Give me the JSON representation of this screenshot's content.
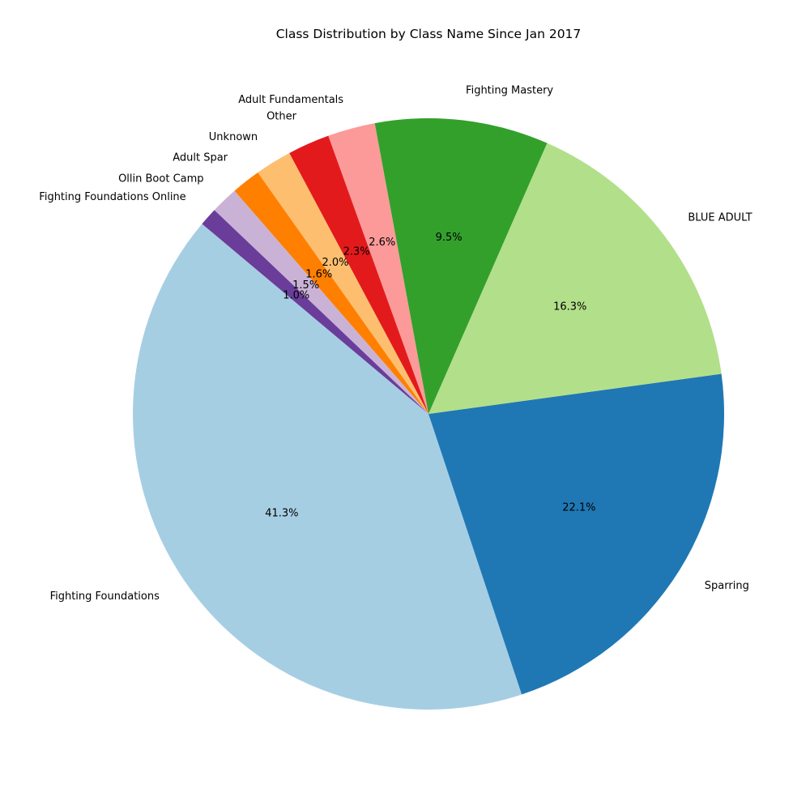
{
  "chart_data": {
    "type": "pie",
    "title": "Class Distribution by Class Name Since Jan 2017",
    "start_angle_deg": 140,
    "direction": "counterclockwise",
    "slices": [
      {
        "label": "Fighting Foundations",
        "value": 41.3,
        "pct_label": "41.3%",
        "color": "#a6cee3"
      },
      {
        "label": "Sparring",
        "value": 22.1,
        "pct_label": "22.1%",
        "color": "#1f78b4"
      },
      {
        "label": "BLUE ADULT",
        "value": 16.3,
        "pct_label": "16.3%",
        "color": "#b2df8a"
      },
      {
        "label": "Fighting Mastery",
        "value": 9.5,
        "pct_label": "9.5%",
        "color": "#33a02c"
      },
      {
        "label": "Adult Fundamentals",
        "value": 2.6,
        "pct_label": "2.6%",
        "color": "#fb9a99"
      },
      {
        "label": "Other",
        "value": 2.3,
        "pct_label": "2.3%",
        "color": "#e31a1c"
      },
      {
        "label": "Unknown",
        "value": 2.0,
        "pct_label": "2.0%",
        "color": "#fdbf6f"
      },
      {
        "label": "Adult Spar",
        "value": 1.6,
        "pct_label": "1.6%",
        "color": "#ff7f00"
      },
      {
        "label": "Ollin Boot Camp",
        "value": 1.5,
        "pct_label": "1.5%",
        "color": "#cab2d6"
      },
      {
        "label": "Fighting Foundations Online",
        "value": 1.0,
        "pct_label": "1.0%",
        "color": "#6a3d9a"
      }
    ]
  }
}
